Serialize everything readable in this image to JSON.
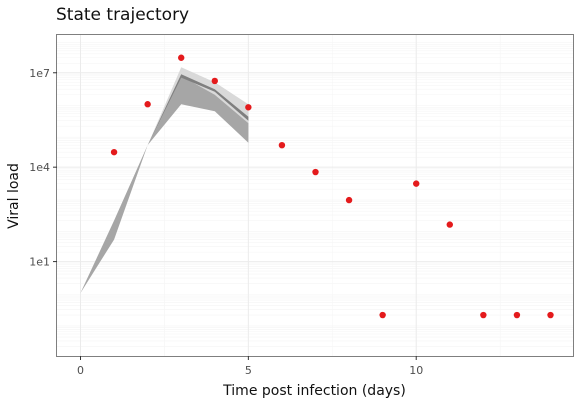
{
  "chart_data": {
    "type": "scatter",
    "title": "State trajectory",
    "xlabel": "Time post infection (days)",
    "ylabel": "Viral load",
    "log_y": true,
    "grid": true,
    "xlim": [
      -0.7,
      14.7
    ],
    "ylim_log10": [
      -2.0,
      8.2
    ],
    "x_ticks": [
      {
        "value": 0,
        "label": "0"
      },
      {
        "value": 5,
        "label": "5"
      },
      {
        "value": 10,
        "label": "10"
      }
    ],
    "y_ticks": [
      {
        "value": 10,
        "label": "1e1"
      },
      {
        "value": 10000,
        "label": "1e4"
      },
      {
        "value": 10000000,
        "label": "1e7"
      }
    ],
    "points": [
      {
        "x": 1,
        "y": 30000
      },
      {
        "x": 2,
        "y": 1000000
      },
      {
        "x": 3,
        "y": 30000000
      },
      {
        "x": 4,
        "y": 5500000
      },
      {
        "x": 5,
        "y": 800000
      },
      {
        "x": 6,
        "y": 50000
      },
      {
        "x": 7,
        "y": 7000
      },
      {
        "x": 8,
        "y": 900
      },
      {
        "x": 9,
        "y": 0.2
      },
      {
        "x": 10,
        "y": 3000
      },
      {
        "x": 11,
        "y": 150
      },
      {
        "x": 12,
        "y": 0.2
      },
      {
        "x": 13,
        "y": 0.2
      },
      {
        "x": 14,
        "y": 0.2
      }
    ],
    "bands": [
      {
        "color": "#d9d9d9",
        "x": [
          0,
          1,
          2,
          3,
          4,
          5
        ],
        "upper": [
          1,
          200,
          50000,
          15000000,
          5000000,
          1000000
        ],
        "lower": [
          1,
          100,
          50000,
          8000000,
          2000000,
          250000
        ]
      },
      {
        "color": "#a6a6a6",
        "x": [
          0,
          1,
          2,
          3,
          4,
          5
        ],
        "upper": [
          1,
          200,
          50000,
          8000000,
          2000000,
          250000
        ],
        "lower": [
          1,
          50,
          50000,
          1000000,
          600000,
          60000
        ]
      },
      {
        "color": "#7f7f7f",
        "x": [
          0,
          1,
          2,
          3,
          4,
          5
        ],
        "upper": [
          1,
          100,
          50000,
          9000000,
          3000000,
          400000
        ],
        "lower": [
          1,
          100,
          50000,
          7000000,
          2500000,
          300000
        ]
      }
    ],
    "point_color": "#e41a1c"
  }
}
